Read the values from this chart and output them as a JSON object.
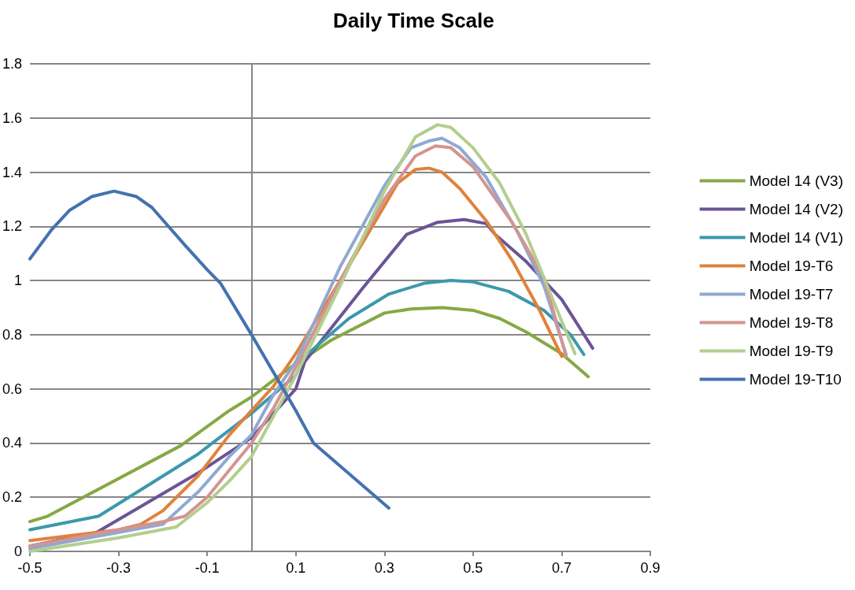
{
  "chart_data": {
    "type": "line",
    "title": "Daily Time Scale",
    "xlim": [
      -0.5,
      0.9
    ],
    "xticks": [
      -0.5,
      -0.3,
      -0.1,
      0.1,
      0.3,
      0.5,
      0.7,
      0.9
    ],
    "ylim": [
      0,
      1.8
    ],
    "yticks": [
      0,
      0.2,
      0.4,
      0.6,
      0.8,
      1,
      1.2,
      1.4,
      1.6,
      1.8
    ],
    "grid": "y",
    "legend": "right",
    "marker": "none",
    "line_style": "solid",
    "series": [
      {
        "name": "Model 14 (V3)",
        "color": "#86a844",
        "x": [
          -0.5,
          -0.46,
          -0.16,
          -0.05,
          0,
          0.08,
          0.18,
          0.3,
          0.36,
          0.43,
          0.5,
          0.56,
          0.62,
          0.7,
          0.76
        ],
        "values": [
          0.11,
          0.13,
          0.39,
          0.52,
          0.57,
          0.67,
          0.78,
          0.88,
          0.895,
          0.9,
          0.89,
          0.86,
          0.81,
          0.73,
          0.645
        ]
      },
      {
        "name": "Model 14 (V2)",
        "color": "#6b5496",
        "x": [
          -0.5,
          -0.35,
          -0.12,
          0,
          0.1,
          0.12,
          0.25,
          0.35,
          0.42,
          0.48,
          0.53,
          0.55,
          0.62,
          0.7,
          0.77
        ],
        "values": [
          0.02,
          0.07,
          0.29,
          0.42,
          0.6,
          0.7,
          0.97,
          1.17,
          1.215,
          1.225,
          1.21,
          1.17,
          1.07,
          0.93,
          0.75
        ]
      },
      {
        "name": "Model 14 (V1)",
        "color": "#3c98ad",
        "x": [
          -0.5,
          -0.345,
          -0.12,
          0,
          0.1,
          0.12,
          0.22,
          0.31,
          0.39,
          0.45,
          0.5,
          0.58,
          0.66,
          0.72,
          0.75
        ],
        "values": [
          0.08,
          0.13,
          0.36,
          0.51,
          0.65,
          0.72,
          0.86,
          0.95,
          0.99,
          1.0,
          0.995,
          0.96,
          0.89,
          0.8,
          0.727
        ]
      },
      {
        "name": "Model 19-T6",
        "color": "#e0823a",
        "x": [
          -0.5,
          -0.3,
          -0.25,
          -0.2,
          -0.12,
          -0.05,
          0,
          0.05,
          0.1,
          0.2,
          0.28,
          0.33,
          0.37,
          0.4,
          0.43,
          0.47,
          0.53,
          0.59,
          0.65,
          0.7
        ],
        "values": [
          0.04,
          0.08,
          0.1,
          0.15,
          0.28,
          0.43,
          0.52,
          0.61,
          0.73,
          1.0,
          1.22,
          1.36,
          1.41,
          1.415,
          1.4,
          1.34,
          1.22,
          1.07,
          0.89,
          0.72
        ]
      },
      {
        "name": "Model 19-T7",
        "color": "#8ea9d2",
        "x": [
          -0.5,
          -0.2,
          -0.12,
          -0.05,
          0,
          0.05,
          0.1,
          0.2,
          0.3,
          0.36,
          0.4,
          0.43,
          0.47,
          0.53,
          0.6,
          0.66,
          0.71
        ],
        "values": [
          0.01,
          0.1,
          0.22,
          0.35,
          0.43,
          0.58,
          0.7,
          1.05,
          1.35,
          1.49,
          1.515,
          1.525,
          1.49,
          1.38,
          1.18,
          0.98,
          0.727
        ]
      },
      {
        "name": "Model 19-T8",
        "color": "#d49491",
        "x": [
          -0.5,
          -0.3,
          -0.2,
          -0.15,
          -0.1,
          -0.05,
          0,
          0.05,
          0.1,
          0.2,
          0.3,
          0.37,
          0.415,
          0.45,
          0.5,
          0.59,
          0.66,
          0.71
        ],
        "values": [
          0.02,
          0.08,
          0.11,
          0.13,
          0.2,
          0.3,
          0.4,
          0.53,
          0.68,
          1.0,
          1.3,
          1.46,
          1.497,
          1.49,
          1.42,
          1.21,
          1.01,
          0.72
        ]
      },
      {
        "name": "Model 19-T9",
        "color": "#b3ce8e",
        "x": [
          -0.5,
          -0.3,
          -0.17,
          -0.1,
          -0.05,
          0,
          0.05,
          0.1,
          0.2,
          0.3,
          0.37,
          0.42,
          0.45,
          0.5,
          0.56,
          0.62,
          0.73
        ],
        "values": [
          0.0,
          0.05,
          0.09,
          0.18,
          0.26,
          0.35,
          0.5,
          0.65,
          0.98,
          1.33,
          1.53,
          1.575,
          1.565,
          1.49,
          1.36,
          1.17,
          0.73
        ]
      },
      {
        "name": "Model 19-T10",
        "color": "#4472b0",
        "x": [
          -0.5,
          -0.45,
          -0.41,
          -0.36,
          -0.31,
          -0.26,
          -0.225,
          -0.15,
          -0.1,
          -0.07,
          0,
          0.1,
          0.14,
          0.31
        ],
        "values": [
          1.08,
          1.19,
          1.26,
          1.31,
          1.33,
          1.31,
          1.27,
          1.13,
          1.04,
          0.99,
          0.8,
          0.52,
          0.4,
          0.16
        ]
      }
    ]
  }
}
